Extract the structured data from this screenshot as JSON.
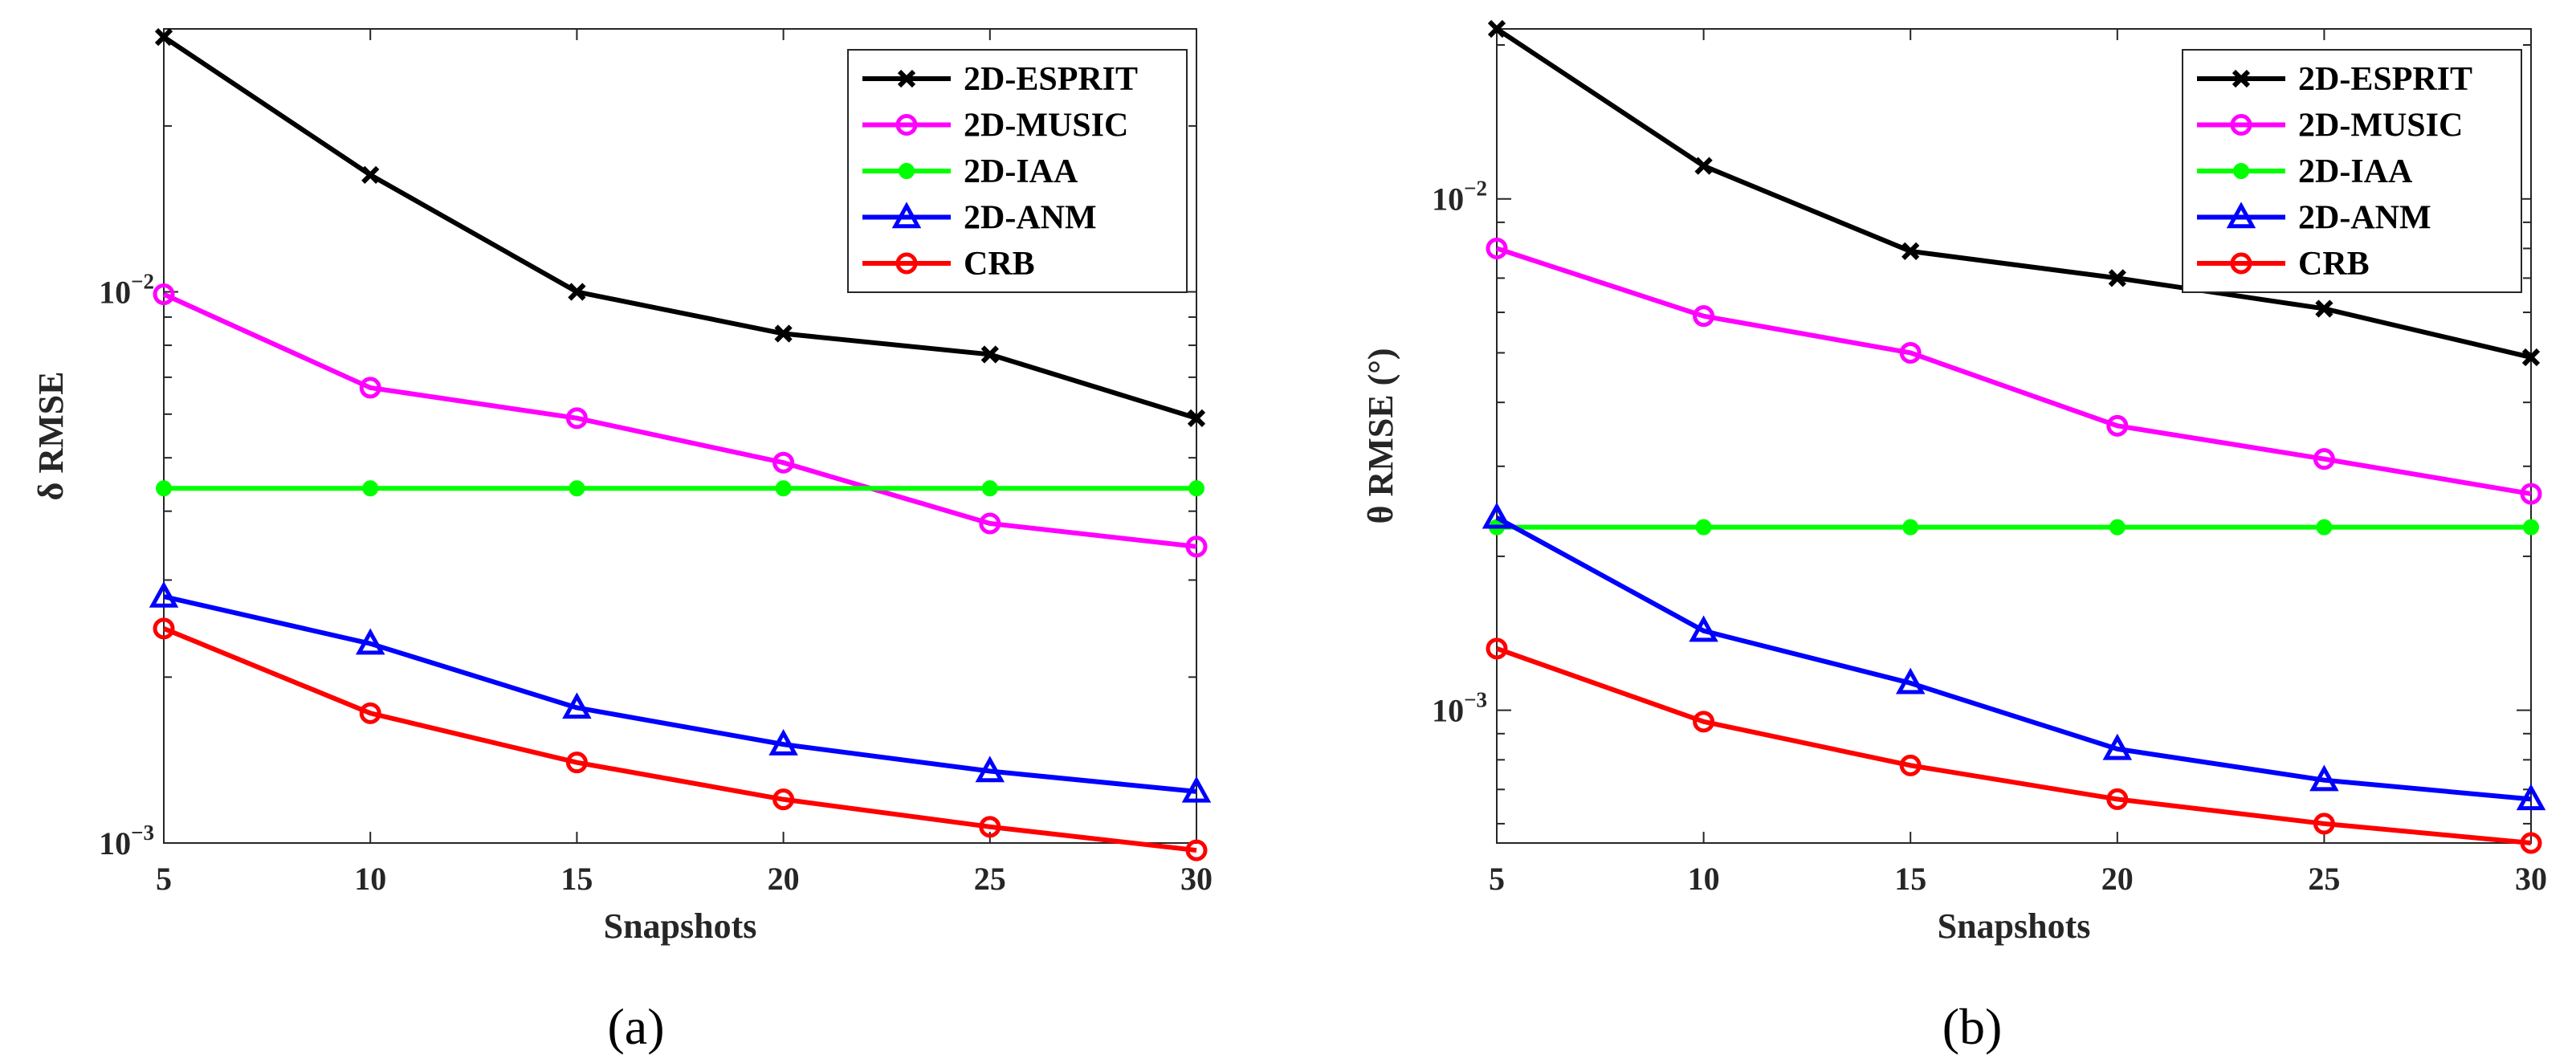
{
  "chart_data": [
    {
      "type": "line",
      "caption": "(a)",
      "xlabel": "Snapshots",
      "ylabel": "δ RMSE",
      "yscale": "log",
      "x": [
        5,
        10,
        15,
        20,
        25,
        30
      ],
      "xlim": [
        5,
        30
      ],
      "ylim": [
        0.001,
        0.03
      ],
      "xticks": [
        "5",
        "10",
        "15",
        "20",
        "25",
        "30"
      ],
      "yticks": [
        {
          "value": 0.01,
          "base": "10",
          "exp": "−2"
        },
        {
          "value": 0.001,
          "base": "10",
          "exp": "−3"
        }
      ],
      "legend_position": "top-right",
      "series": [
        {
          "name": "2D-ESPRIT",
          "color": "#000000",
          "marker": "x",
          "values": [
            0.029,
            0.0163,
            0.01,
            0.0084,
            0.0077,
            0.0059
          ]
        },
        {
          "name": "2D-MUSIC",
          "color": "#ff00ff",
          "marker": "circle",
          "values": [
            0.0099,
            0.0067,
            0.0059,
            0.0049,
            0.0038,
            0.00345
          ]
        },
        {
          "name": "2D-IAA",
          "color": "#00ff00",
          "marker": "dot",
          "values": [
            0.0044,
            0.0044,
            0.0044,
            0.0044,
            0.0044,
            0.0044
          ]
        },
        {
          "name": "2D-ANM",
          "color": "#0000ff",
          "marker": "triangle",
          "values": [
            0.0028,
            0.0023,
            0.00176,
            0.00151,
            0.00135,
            0.00124
          ]
        },
        {
          "name": "CRB",
          "color": "#ff0000",
          "marker": "circle",
          "values": [
            0.00245,
            0.00172,
            0.0014,
            0.0012,
            0.00107,
            0.00097
          ]
        }
      ]
    },
    {
      "type": "line",
      "caption": "(b)",
      "xlabel": "Snapshots",
      "ylabel": "θ RMSE (°)",
      "yscale": "log",
      "x": [
        5,
        10,
        15,
        20,
        25,
        30
      ],
      "xlim": [
        5,
        30
      ],
      "ylim": [
        0.00055,
        0.0215
      ],
      "xticks": [
        "5",
        "10",
        "15",
        "20",
        "25",
        "30"
      ],
      "yticks": [
        {
          "value": 0.01,
          "base": "10",
          "exp": "−2"
        },
        {
          "value": 0.001,
          "base": "10",
          "exp": "−3"
        }
      ],
      "legend_position": "top-right",
      "series": [
        {
          "name": "2D-ESPRIT",
          "color": "#000000",
          "marker": "x",
          "values": [
            0.0215,
            0.0116,
            0.0079,
            0.007,
            0.0061,
            0.0049
          ]
        },
        {
          "name": "2D-MUSIC",
          "color": "#ff00ff",
          "marker": "circle",
          "values": [
            0.008,
            0.0059,
            0.005,
            0.0036,
            0.0031,
            0.00265
          ]
        },
        {
          "name": "2D-IAA",
          "color": "#00ff00",
          "marker": "dot",
          "values": [
            0.00228,
            0.00228,
            0.00228,
            0.00228,
            0.00228,
            0.00228
          ]
        },
        {
          "name": "2D-ANM",
          "color": "#0000ff",
          "marker": "triangle",
          "values": [
            0.00238,
            0.00143,
            0.00113,
            0.00084,
            0.00073,
            0.00067
          ]
        },
        {
          "name": "CRB",
          "color": "#ff0000",
          "marker": "circle",
          "values": [
            0.00132,
            0.00095,
            0.00078,
            0.00067,
            0.0006,
            0.00055
          ]
        }
      ]
    }
  ]
}
